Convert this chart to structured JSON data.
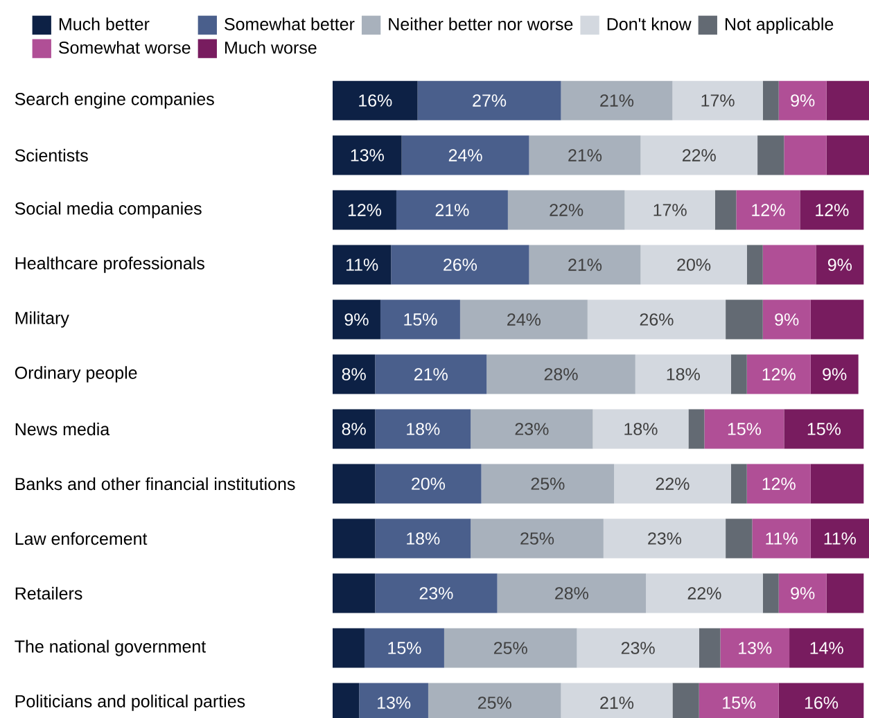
{
  "chart_data": {
    "type": "bar",
    "orientation": "horizontal",
    "stacked": true,
    "legend": "top",
    "tick_labels": "y",
    "categories": [
      "Search engine companies",
      "Scientists",
      "Social media companies",
      "Healthcare professionals",
      "Military",
      "Ordinary people",
      "News media",
      "Banks and other financial institutions",
      "Law enforcement",
      "Retailers",
      "The national government",
      "Politicians and political parties"
    ],
    "series": [
      {
        "name": "Much better",
        "color": "#0d2145",
        "values": [
          16,
          13,
          12,
          11,
          9,
          8,
          8,
          8,
          8,
          8,
          6,
          5
        ],
        "value_labels": [
          "16%",
          "13%",
          "12%",
          "11%",
          "9%",
          "8%",
          "8%",
          null,
          null,
          null,
          null,
          null
        ]
      },
      {
        "name": "Somewhat better",
        "color": "#4a5f8c",
        "values": [
          27,
          24,
          21,
          26,
          15,
          21,
          18,
          20,
          18,
          23,
          15,
          13
        ],
        "value_labels": [
          "27%",
          "24%",
          "21%",
          "26%",
          "15%",
          "21%",
          "18%",
          "20%",
          "18%",
          "23%",
          "15%",
          "13%"
        ]
      },
      {
        "name": "Neither better nor worse",
        "color": "#a8b1bc",
        "values": [
          21,
          21,
          22,
          21,
          24,
          28,
          23,
          25,
          25,
          28,
          25,
          25
        ],
        "value_labels": [
          "21%",
          "21%",
          "22%",
          "21%",
          "24%",
          "28%",
          "23%",
          "25%",
          "25%",
          "28%",
          "25%",
          "25%"
        ]
      },
      {
        "name": "Don't know",
        "color": "#d3d8df",
        "values": [
          17,
          22,
          17,
          20,
          26,
          18,
          18,
          22,
          23,
          22,
          23,
          21
        ],
        "value_labels": [
          "17%",
          "22%",
          "17%",
          "20%",
          "26%",
          "18%",
          "18%",
          "22%",
          "23%",
          "22%",
          "23%",
          "21%"
        ]
      },
      {
        "name": "Not applicable",
        "color": "#636a73",
        "values": [
          3,
          5,
          4,
          3,
          7,
          3,
          3,
          3,
          5,
          3,
          4,
          5
        ],
        "value_labels": [
          null,
          null,
          null,
          null,
          null,
          null,
          null,
          null,
          null,
          null,
          null,
          null
        ]
      },
      {
        "name": "Somewhat worse",
        "color": "#b04f96",
        "values": [
          9,
          8,
          12,
          10,
          9,
          12,
          15,
          12,
          11,
          9,
          13,
          15
        ],
        "value_labels": [
          "9%",
          null,
          "12%",
          null,
          "9%",
          "12%",
          "15%",
          "12%",
          "11%",
          "9%",
          "13%",
          "15%"
        ]
      },
      {
        "name": "Much worse",
        "color": "#781c5f",
        "values": [
          8,
          8,
          12,
          9,
          10,
          9,
          15,
          10,
          11,
          7,
          14,
          16
        ],
        "value_labels": [
          null,
          null,
          "12%",
          "9%",
          null,
          "9%",
          "15%",
          null,
          "11%",
          null,
          "14%",
          "16%"
        ]
      }
    ]
  }
}
